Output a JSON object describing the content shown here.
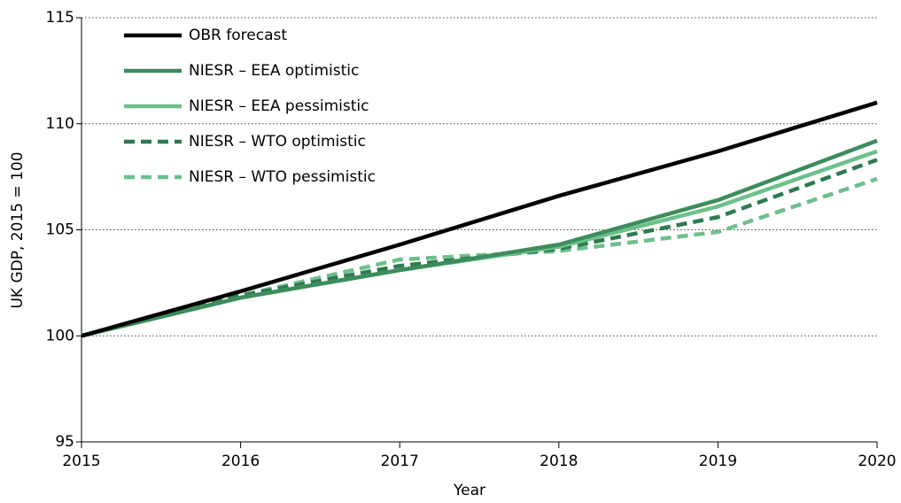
{
  "chart_data": {
    "type": "line",
    "y_label": "UK GDP, 2015 = 100",
    "x_label": "Year",
    "x": [
      2015,
      2016,
      2017,
      2018,
      2019,
      2020
    ],
    "xlim": [
      2015,
      2020
    ],
    "xticks": [
      2015,
      2016,
      2017,
      2018,
      2019,
      2020
    ],
    "ylim": [
      95,
      115
    ],
    "yticks": [
      95,
      100,
      105,
      110,
      115
    ],
    "grid": true,
    "legend": "top-left",
    "series": [
      {
        "name": "OBR forecast",
        "color": "#000000",
        "dashed": false,
        "values": [
          100,
          102.1,
          104.3,
          106.6,
          108.7,
          111.0
        ]
      },
      {
        "name": "NIESR – EEA optimistic",
        "color": "#3d8c5c",
        "dashed": false,
        "values": [
          100,
          101.8,
          103.1,
          104.3,
          106.4,
          109.2
        ]
      },
      {
        "name": "NIESR – EEA pessimistic",
        "color": "#6cc08b",
        "dashed": false,
        "values": [
          100,
          101.8,
          103.1,
          104.2,
          106.1,
          108.7
        ]
      },
      {
        "name": "NIESR – WTO optimistic",
        "color": "#2e7a50",
        "dashed": true,
        "values": [
          100,
          101.9,
          103.3,
          104.1,
          105.6,
          108.3
        ]
      },
      {
        "name": "NIESR – WTO pessimistic",
        "color": "#6cc08b",
        "dashed": true,
        "values": [
          100,
          101.9,
          103.6,
          104.0,
          104.9,
          107.4
        ]
      }
    ]
  }
}
